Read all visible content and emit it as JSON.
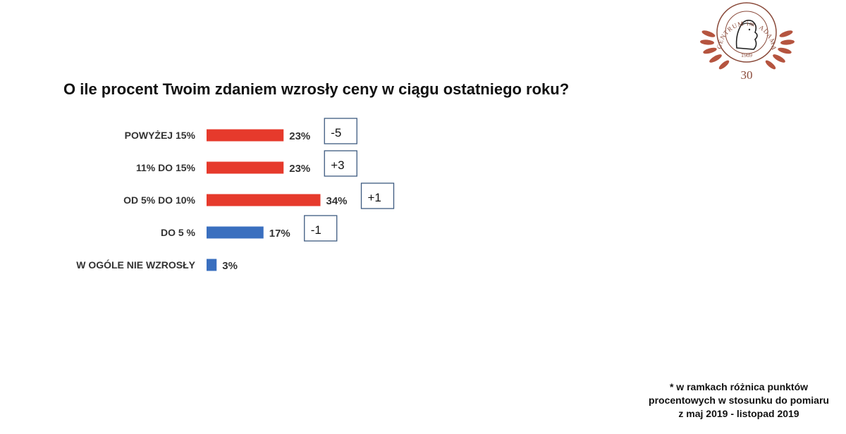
{
  "title": "O ile procent Twoim zdaniem wzrosły ceny w ciągu ostatniego roku?",
  "footnote": "* w ramkach różnica punktów procentowych w stosunku do pomiaru z maj 2019 - listopad 2019",
  "logo": {
    "ring_text": "CENTRUM im. ADAMA SMITHA",
    "year": "1989",
    "anniversary": "30",
    "icon": "portrait-seal-icon",
    "color": "#8a4a3a"
  },
  "colors": {
    "increase": "#e63a2c",
    "decrease": "#3a6fbf"
  },
  "chart_data": {
    "type": "bar",
    "orientation": "horizontal",
    "title": "O ile procent Twoim zdaniem wzrosły ceny w ciągu ostatniego roku?",
    "categories": [
      "POWYŻEJ 15%",
      "11% DO 15%",
      "OD 5% DO 10%",
      "DO 5 %",
      "W OGÓLE NIE WZROSŁY"
    ],
    "values": [
      23,
      23,
      34,
      17,
      3
    ],
    "value_labels": [
      "23%",
      "23%",
      "34%",
      "17%",
      "3%"
    ],
    "differences": [
      "-5",
      "+3",
      "+1",
      "-1",
      ""
    ],
    "bar_colors": [
      "#e63a2c",
      "#e63a2c",
      "#e63a2c",
      "#3a6fbf",
      "#3a6fbf"
    ],
    "xlim": [
      0,
      40
    ],
    "grid": false,
    "legend": "none"
  }
}
